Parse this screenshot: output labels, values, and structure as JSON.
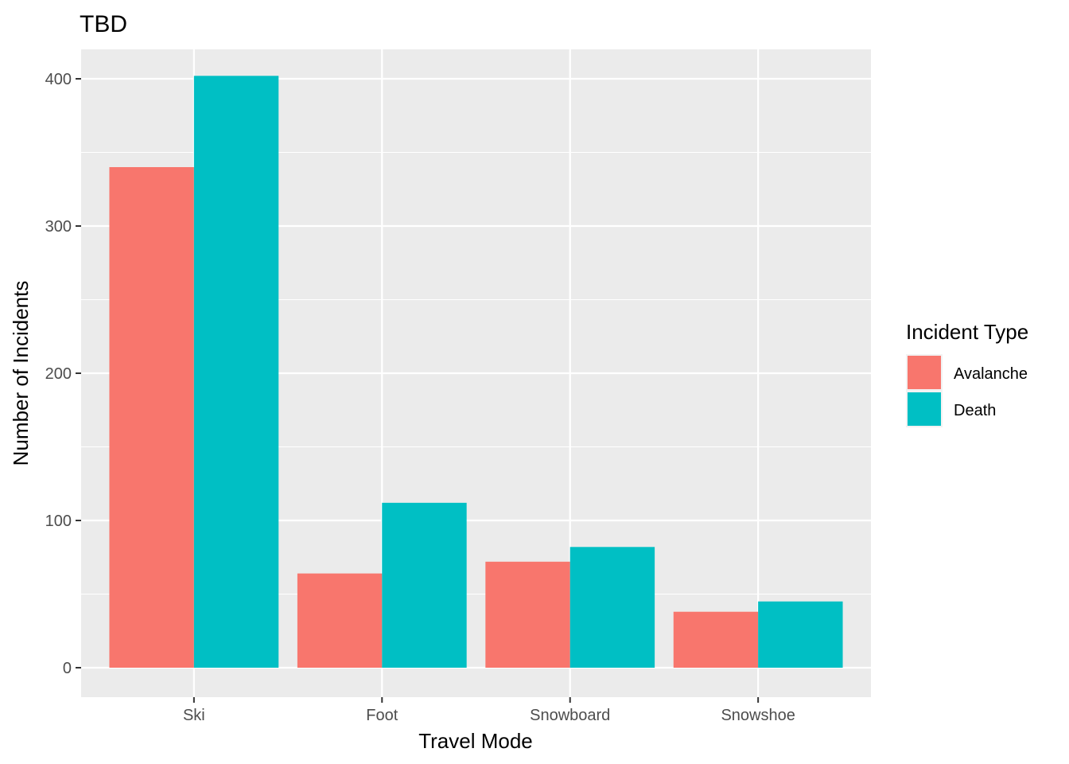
{
  "chart_data": {
    "type": "bar",
    "title": "TBD",
    "xlabel": "Travel Mode",
    "ylabel": "Number of Incidents",
    "categories": [
      "Ski",
      "Foot",
      "Snowboard",
      "Snowshoe"
    ],
    "series": [
      {
        "name": "Avalanche",
        "color": "#F8766D",
        "values": [
          340,
          64,
          72,
          38
        ]
      },
      {
        "name": "Death",
        "color": "#00BFC4",
        "values": [
          402,
          112,
          82,
          45
        ]
      }
    ],
    "ylim": [
      -20,
      420
    ],
    "yticks": [
      0,
      100,
      200,
      300,
      400
    ],
    "ytick_labels": [
      "0",
      "100",
      "200",
      "300",
      "400"
    ],
    "legend_title": "Incident Type",
    "legend_position": "right",
    "grid": true,
    "panel_background": "#EBEBEB"
  }
}
